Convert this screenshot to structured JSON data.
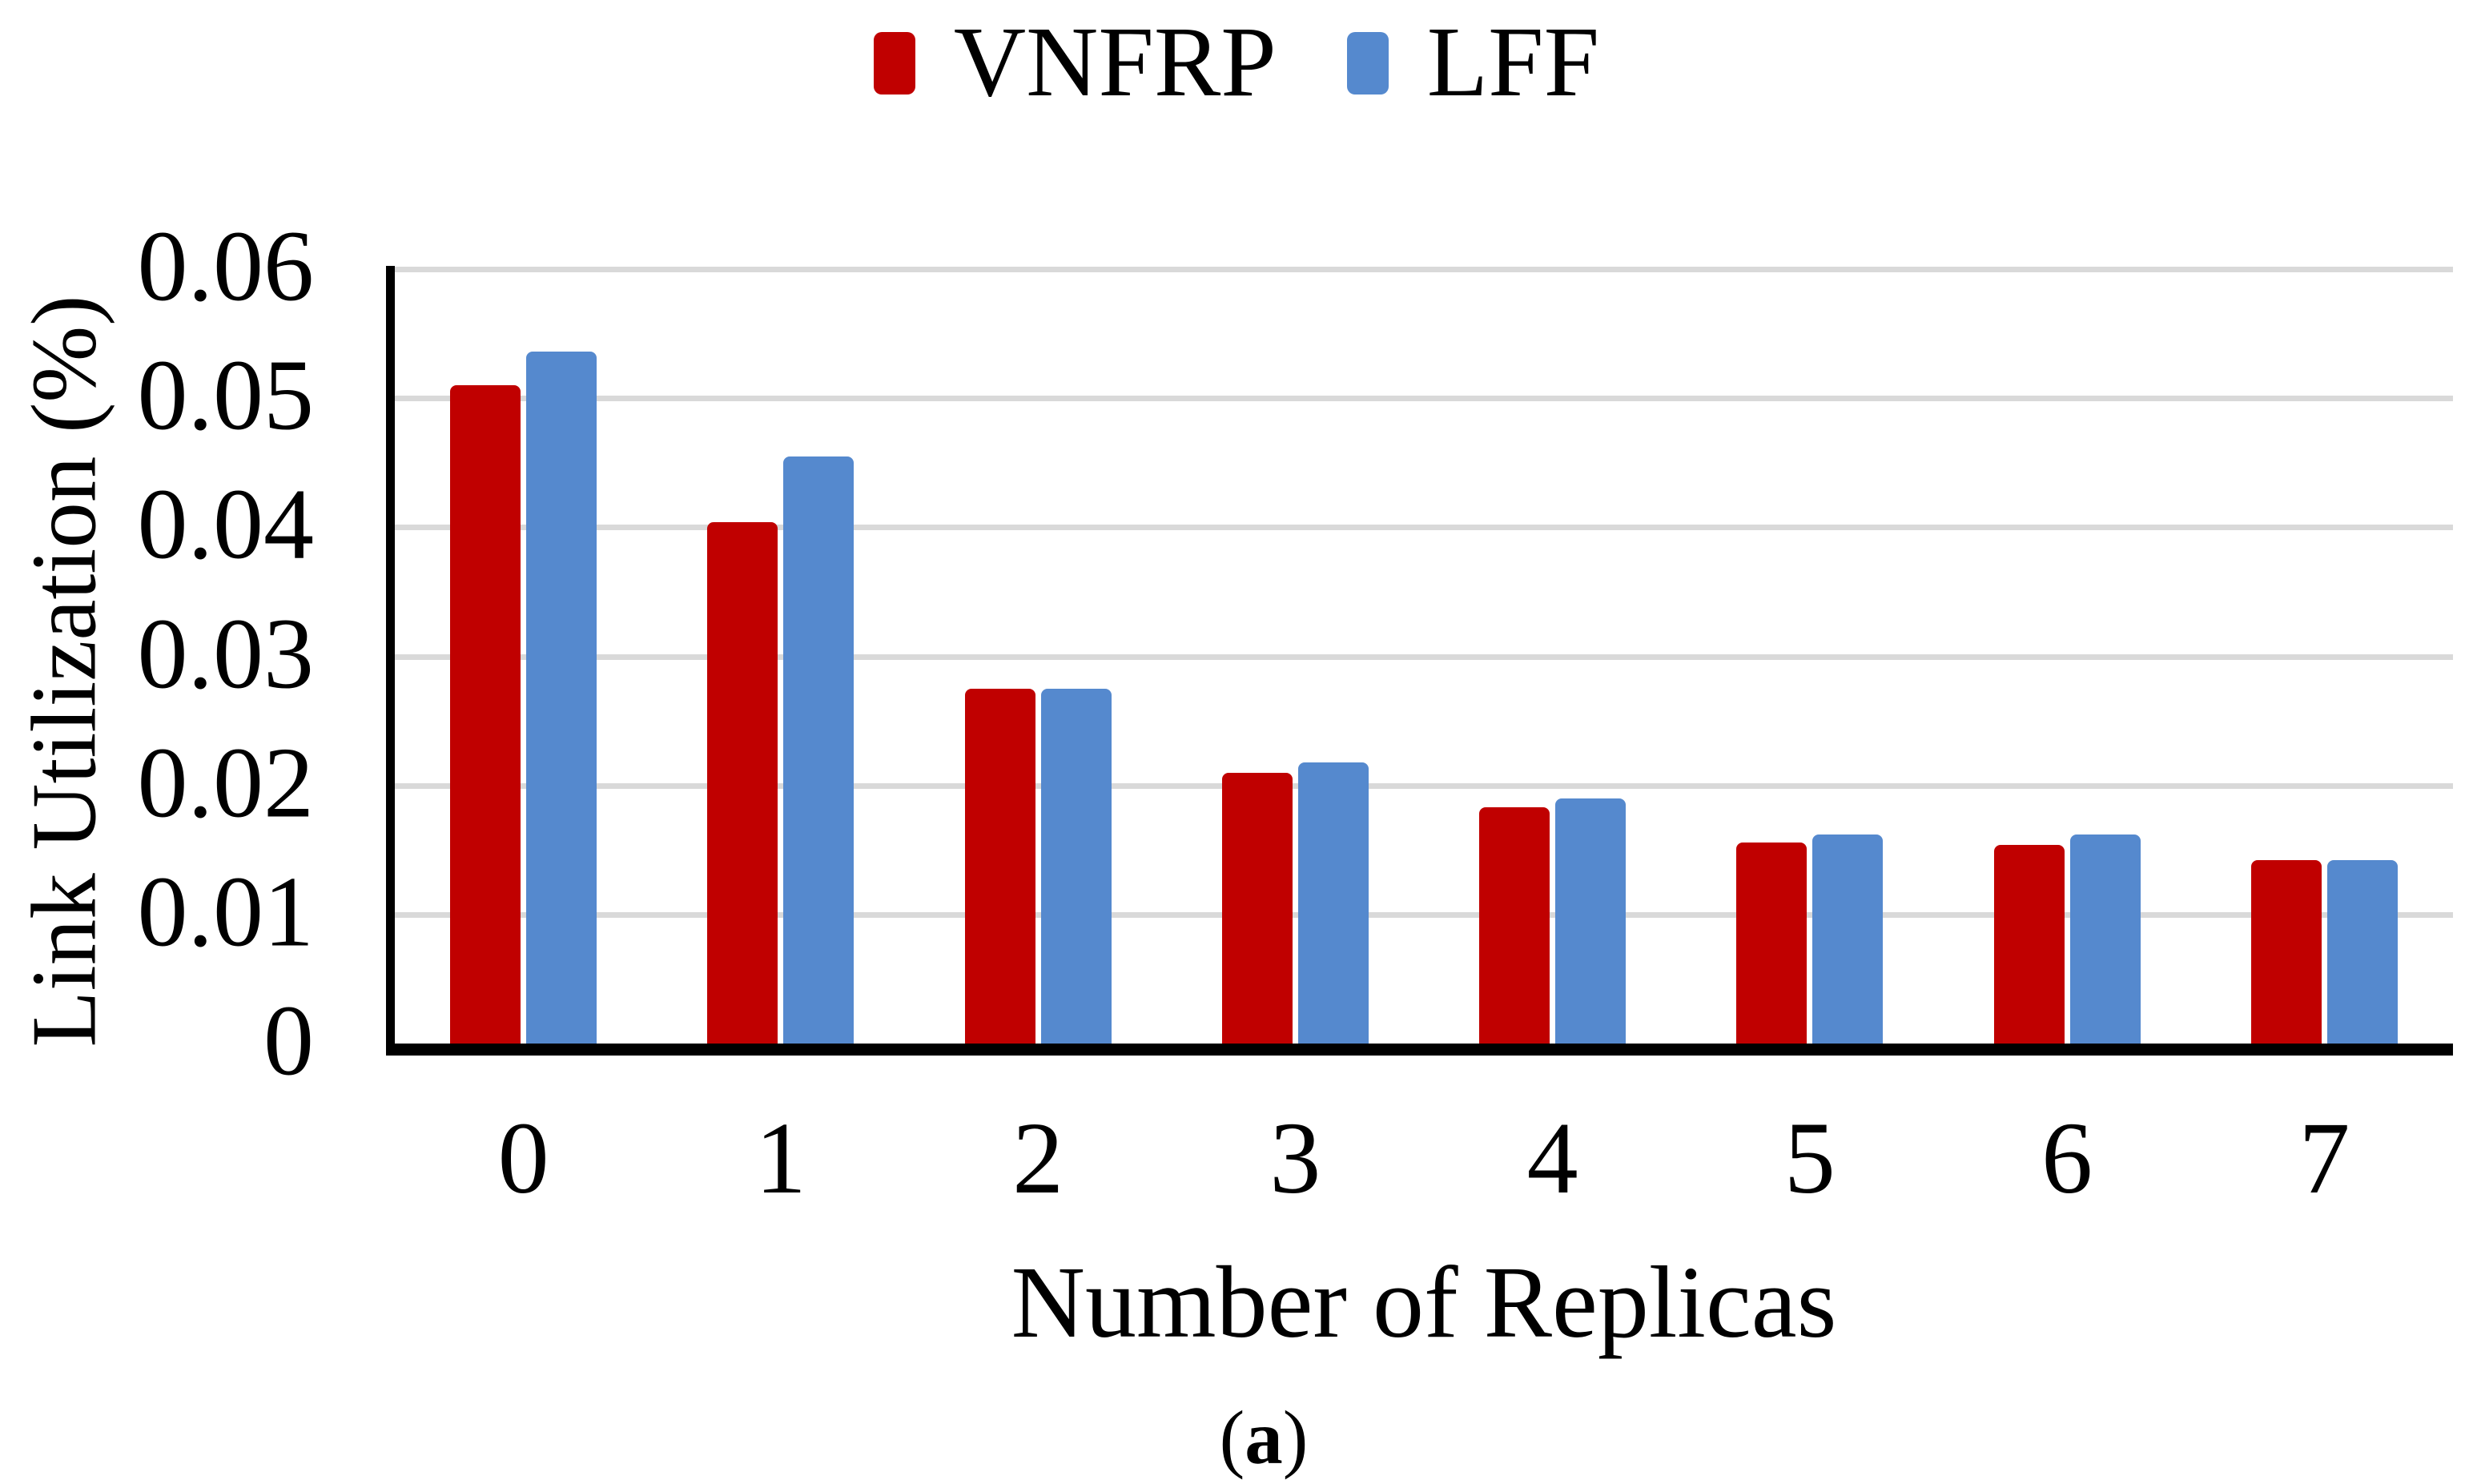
{
  "chart_data": {
    "type": "bar",
    "title": "",
    "categories": [
      "0",
      "1",
      "2",
      "3",
      "4",
      "5",
      "6",
      "7"
    ],
    "series": [
      {
        "name": "VNFRP",
        "color": "#c00000",
        "values": [
          0.051,
          0.0404,
          0.0275,
          0.021,
          0.0183,
          0.0156,
          0.0154,
          0.0142
        ]
      },
      {
        "name": "LFF",
        "color": "#5589ce",
        "values": [
          0.0536,
          0.0455,
          0.0275,
          0.0218,
          0.019,
          0.0162,
          0.0162,
          0.0142
        ]
      }
    ],
    "xlabel": "Number of Replicas",
    "ylabel": "Link Utilization (%)",
    "ylim": [
      0,
      0.06
    ],
    "ytick_step": 0.01,
    "yticks": [
      "0.06",
      "0.05",
      "0.04",
      "0.03",
      "0.02",
      "0.01",
      "0"
    ],
    "grid": true,
    "gridline_color": "#d9d9d9",
    "axis_color": "#000000",
    "legend_position": "top"
  },
  "caption": {
    "open": "(",
    "letter": "a",
    "close": ")"
  }
}
